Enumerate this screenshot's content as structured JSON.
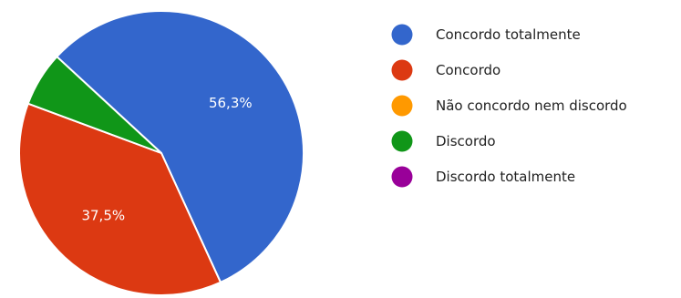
{
  "chart_data": {
    "type": "pie",
    "slices": [
      {
        "label": "Concordo totalmente",
        "value": 56.3,
        "display": "56,3%",
        "color": "#3366cc"
      },
      {
        "label": "Concordo",
        "value": 37.5,
        "display": "37,5%",
        "color": "#dc3912"
      },
      {
        "label": "Não concordo nem discordo",
        "value": 0,
        "display": "",
        "color": "#ff9900"
      },
      {
        "label": "Discordo",
        "value": 6.2,
        "display": "",
        "color": "#109618"
      },
      {
        "label": "Discordo totalmente",
        "value": 0,
        "display": "",
        "color": "#990099"
      }
    ],
    "legend_position": "right"
  }
}
